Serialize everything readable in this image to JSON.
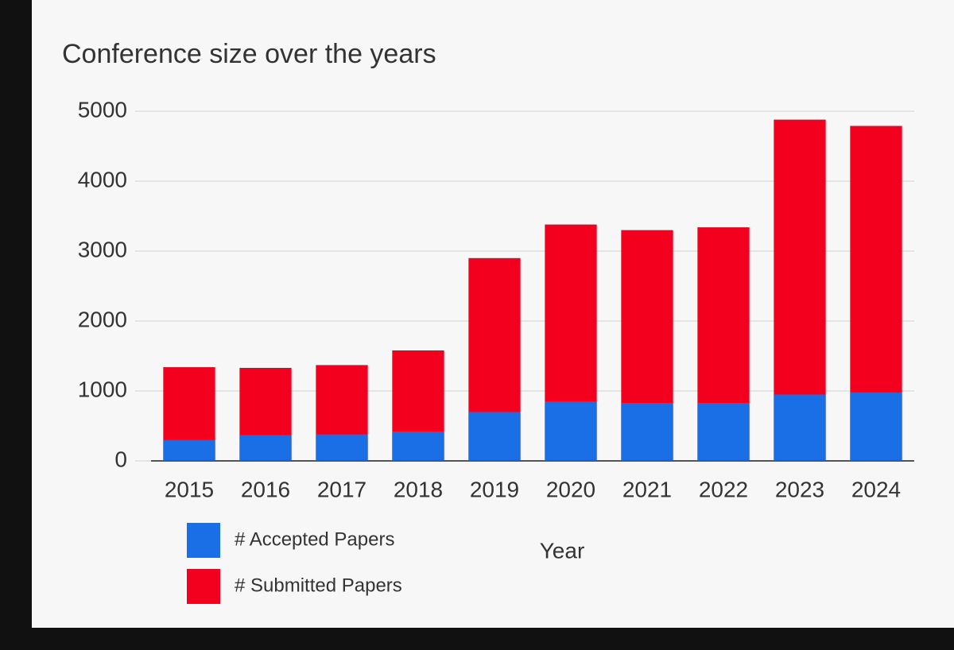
{
  "chart_data": {
    "type": "bar",
    "title": "Conference size over the years",
    "x_label": "Year",
    "categories": [
      "2015",
      "2016",
      "2017",
      "2018",
      "2019",
      "2020",
      "2021",
      "2022",
      "2023",
      "2024"
    ],
    "series": [
      {
        "name": "# Submitted Papers",
        "color": "#f2001e",
        "values": [
          1340,
          1330,
          1370,
          1580,
          2900,
          3380,
          3300,
          3340,
          4880,
          4790
        ]
      },
      {
        "name": "# Accepted Papers",
        "color": "#1a6fe6",
        "values": [
          300,
          370,
          380,
          420,
          700,
          850,
          830,
          830,
          950,
          980
        ]
      }
    ],
    "ylim": [
      0,
      5000
    ],
    "yticks": [
      0,
      1000,
      2000,
      3000,
      4000,
      5000
    ],
    "grid": true
  }
}
